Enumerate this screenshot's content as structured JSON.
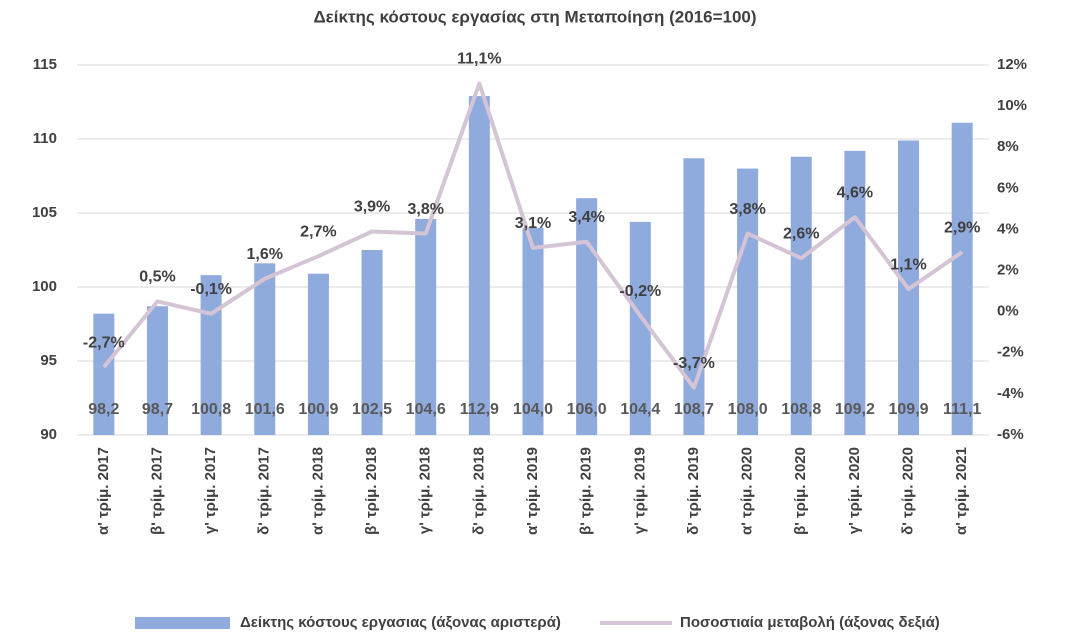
{
  "chart_data": {
    "type": "bar_line",
    "title": "Δείκτης κόστους εργασίας στη Μεταποίηση (2016=100)",
    "categories": [
      "α' τρίμ. 2017",
      "β' τρίμ. 2017",
      "γ' τρίμ. 2017",
      "δ' τρίμ. 2017",
      "α' τρίμ. 2018",
      "β' τρίμ. 2018",
      "γ' τρίμ. 2018",
      "δ' τρίμ. 2018",
      "α' τρίμ. 2019",
      "β' τρίμ. 2019",
      "γ' τρίμ. 2019",
      "δ' τρίμ. 2019",
      "α' τρίμ. 2020",
      "β' τρίμ. 2020",
      "γ' τρίμ. 2020",
      "δ' τρίμ. 2020",
      "α' τρίμ. 2021"
    ],
    "series": [
      {
        "name": "Δείκτης κόστους εργασιας (άξονας αριστερά)",
        "type": "bar",
        "color": "#8faadc",
        "values": [
          98.2,
          98.7,
          100.8,
          101.6,
          100.9,
          102.5,
          104.6,
          112.9,
          104.0,
          106.0,
          104.4,
          108.7,
          108.0,
          108.8,
          109.2,
          109.9,
          111.1
        ],
        "value_labels": [
          "98,2",
          "98,7",
          "100,8",
          "101,6",
          "100,9",
          "102,5",
          "104,6",
          "112,9",
          "104,0",
          "106,0",
          "104,4",
          "108,7",
          "108,0",
          "108,8",
          "109,2",
          "109,9",
          "111,1"
        ]
      },
      {
        "name": "Ποσοστιαία μεταβολή (άξονας δεξιά)",
        "type": "line",
        "axis": "y2",
        "color": "#d5c4d5",
        "values": [
          -2.7,
          0.5,
          -0.1,
          1.6,
          2.7,
          3.9,
          3.8,
          11.1,
          3.1,
          3.4,
          -0.2,
          -3.7,
          3.8,
          2.6,
          4.6,
          1.1,
          2.9
        ],
        "value_labels": [
          "-2,7%",
          "0,5%",
          "-0,1%",
          "1,6%",
          "2,7%",
          "3,9%",
          "3,8%",
          "11,1%",
          "3,1%",
          "3,4%",
          "-0,2%",
          "-3,7%",
          "3,8%",
          "2,6%",
          "4,6%",
          "1,1%",
          "2,9%"
        ]
      }
    ],
    "ylim": [
      90,
      115
    ],
    "yticks": [
      90,
      95,
      100,
      105,
      110,
      115
    ],
    "y2lim": [
      -6,
      12
    ],
    "y2ticks": [
      {
        "value": -6,
        "label": "-6%"
      },
      {
        "value": -4,
        "label": "-4%"
      },
      {
        "value": -2,
        "label": "-2%"
      },
      {
        "value": 0,
        "label": "0%"
      },
      {
        "value": 2,
        "label": "2%"
      },
      {
        "value": 4,
        "label": "4%"
      },
      {
        "value": 6,
        "label": "6%"
      },
      {
        "value": 8,
        "label": "8%"
      },
      {
        "value": 10,
        "label": "10%"
      },
      {
        "value": 12,
        "label": "12%"
      }
    ],
    "grid": true
  }
}
